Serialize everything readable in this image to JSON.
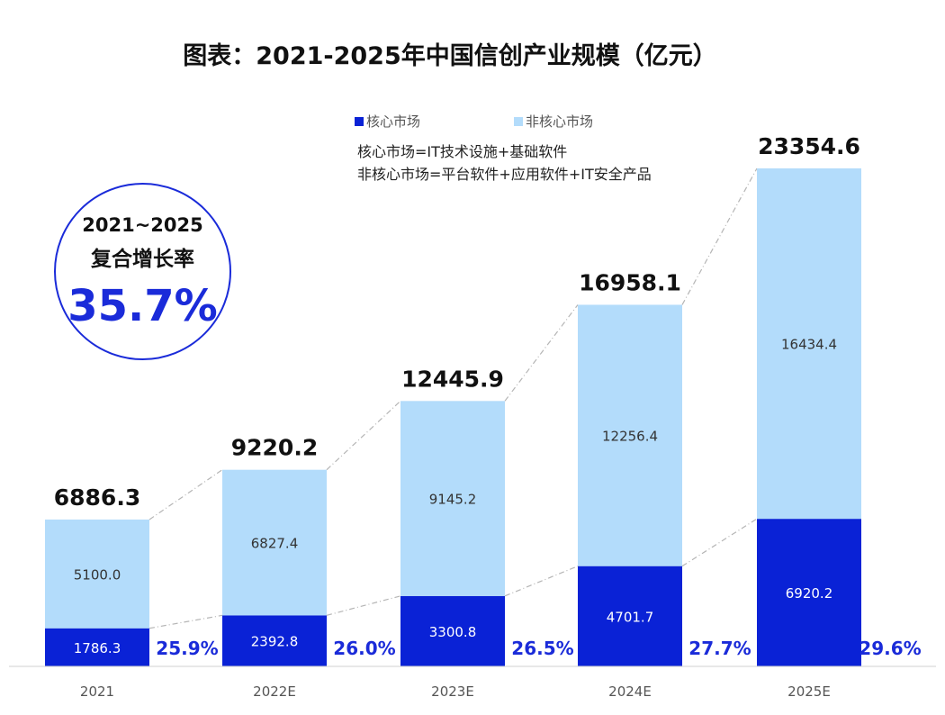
{
  "title": "图表：2021-2025年中国信创产业规模（亿元）",
  "legend": {
    "core_label": "核心市场",
    "noncore_label": "非核心市场"
  },
  "notes": {
    "line1": "核心市场=IT技术设施+基础软件",
    "line2": "非核心市场=平台软件+应用软件+IT安全产品"
  },
  "cagr": {
    "period": "2021~2025",
    "label": "复合增长率",
    "value": "35.7%"
  },
  "colors": {
    "core": "#0a22d6",
    "noncore": "#b3dcfb",
    "accent": "#1a2bd9"
  },
  "chart_data": {
    "type": "bar",
    "stacked": true,
    "categories": [
      "2021",
      "2022E",
      "2023E",
      "2024E",
      "2025E"
    ],
    "series": [
      {
        "name": "核心市场",
        "values": [
          1786.3,
          2392.8,
          3300.8,
          4701.7,
          6920.2
        ]
      },
      {
        "name": "非核心市场",
        "values": [
          5100.0,
          6827.4,
          9145.2,
          12256.4,
          16434.4
        ]
      }
    ],
    "totals": [
      6886.3,
      9220.2,
      12445.9,
      16958.1,
      23354.6
    ],
    "total_labels": [
      "6886.3",
      "9220.2",
      "12445.9",
      "16958.1",
      "23354.6"
    ],
    "core_labels": [
      "1786.3",
      "2392.8",
      "3300.8",
      "4701.7",
      "6920.2"
    ],
    "noncore_labels": [
      "5100.0",
      "6827.4",
      "9145.2",
      "12256.4",
      "16434.4"
    ],
    "core_share_labels": [
      "25.9%",
      "26.0%",
      "26.5%",
      "27.7%",
      "29.6%"
    ],
    "ylim": [
      0,
      25000
    ],
    "grid": false,
    "legend_position": "top"
  }
}
